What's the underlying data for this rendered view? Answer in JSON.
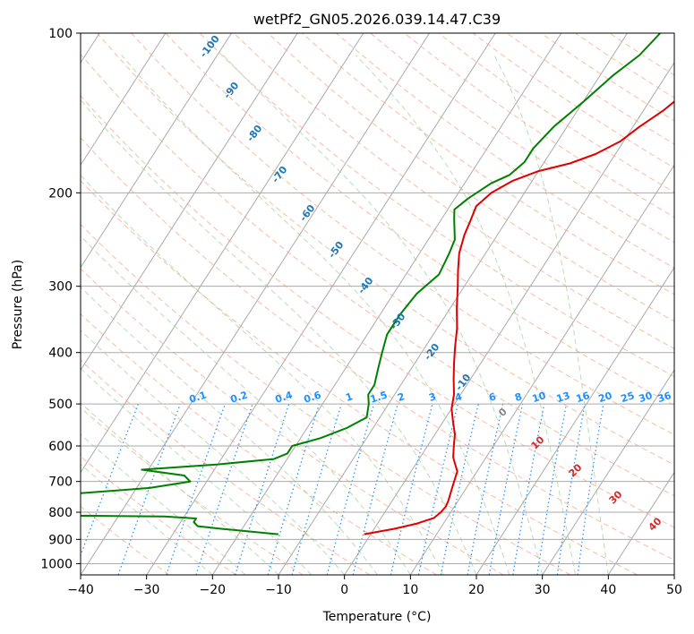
{
  "chart_data": {
    "type": "line",
    "title": "wetPf2_GN05.2026.039.14.47.C39",
    "xlabel": "Temperature (°C)",
    "ylabel": "Pressure (hPa)",
    "xlim": [
      -40,
      50
    ],
    "ylim": [
      1050,
      100
    ],
    "y_scale": "log",
    "grid": true,
    "x_ticks": [
      "−40",
      "−30",
      "−20",
      "−10",
      "0",
      "10",
      "20",
      "30",
      "40",
      "50"
    ],
    "y_ticks": [
      "100",
      "200",
      "300",
      "400",
      "500",
      "600",
      "700",
      "800",
      "900",
      "1000"
    ],
    "y_tick_values": [
      100,
      200,
      300,
      400,
      500,
      600,
      700,
      800,
      900,
      1000
    ],
    "series": [
      {
        "id": "temperature",
        "color": "#e00000",
        "points": [
          [
            -1,
            880
          ],
          [
            3,
            860
          ],
          [
            6,
            840
          ],
          [
            8,
            820
          ],
          [
            8.5,
            800
          ],
          [
            8.7,
            780
          ],
          [
            8.5,
            760
          ],
          [
            8,
            730
          ],
          [
            7.5,
            700
          ],
          [
            7,
            670
          ],
          [
            6,
            650
          ],
          [
            5,
            630
          ],
          [
            4,
            600
          ],
          [
            3,
            570
          ],
          [
            1.5,
            540
          ],
          [
            0,
            510
          ],
          [
            -1,
            480
          ],
          [
            -2.5,
            450
          ],
          [
            -4,
            420
          ],
          [
            -5.5,
            390
          ],
          [
            -7,
            360
          ],
          [
            -9,
            330
          ],
          [
            -11,
            300
          ],
          [
            -12.5,
            280
          ],
          [
            -14,
            260
          ],
          [
            -15,
            240
          ],
          [
            -15.5,
            225
          ],
          [
            -16,
            212
          ],
          [
            -15,
            200
          ],
          [
            -13,
            190
          ],
          [
            -10,
            182
          ],
          [
            -6,
            176
          ],
          [
            -3,
            169
          ],
          [
            -0.5,
            160
          ],
          [
            1,
            150
          ],
          [
            3,
            140
          ],
          [
            4.5,
            130
          ],
          [
            6,
            120
          ],
          [
            7.5,
            115
          ],
          [
            9,
            108
          ],
          [
            10.5,
            100
          ]
        ]
      },
      {
        "id": "dewpoint",
        "color": "#008000",
        "points": [
          [
            -14,
            880
          ],
          [
            -23,
            860
          ],
          [
            -27,
            850
          ],
          [
            -28,
            835
          ],
          [
            -28,
            822
          ],
          [
            -33,
            815
          ],
          [
            -45,
            812
          ],
          [
            -55,
            815
          ],
          [
            -62,
            822
          ],
          [
            -50,
            740
          ],
          [
            -38,
            720
          ],
          [
            -32.5,
            700
          ],
          [
            -34,
            682
          ],
          [
            -41,
            665
          ],
          [
            -30,
            650
          ],
          [
            -22,
            635
          ],
          [
            -20.5,
            620
          ],
          [
            -20.5,
            600
          ],
          [
            -17,
            580
          ],
          [
            -14,
            555
          ],
          [
            -12,
            530
          ],
          [
            -13,
            500
          ],
          [
            -14,
            480
          ],
          [
            -14,
            460
          ],
          [
            -15,
            430
          ],
          [
            -16,
            400
          ],
          [
            -17,
            370
          ],
          [
            -17,
            340
          ],
          [
            -16.5,
            310
          ],
          [
            -15,
            285
          ],
          [
            -15.5,
            260
          ],
          [
            -16,
            245
          ],
          [
            -18,
            225
          ],
          [
            -19,
            215
          ],
          [
            -18,
            205
          ],
          [
            -16,
            192
          ],
          [
            -14,
            185
          ],
          [
            -13,
            175
          ],
          [
            -13,
            165
          ],
          [
            -12,
            150
          ],
          [
            -10,
            135
          ],
          [
            -8,
            120
          ],
          [
            -6,
            110
          ],
          [
            -5,
            100
          ]
        ]
      }
    ],
    "dry_adiabat_labels": [
      "-100",
      "-90",
      "-80",
      "-70",
      "-60",
      "-50",
      "-40",
      "-30",
      "-20",
      "-10"
    ],
    "moist_adiabat_labels": [
      "0",
      "10",
      "20",
      "30",
      "40"
    ],
    "mixing_ratio_labels": [
      "0.1",
      "0.2",
      "0.4",
      "0.6",
      "1",
      "1.5",
      "2",
      "3",
      "4",
      "6",
      "8",
      "10",
      "13",
      "16",
      "20",
      "25",
      "30",
      "36"
    ]
  }
}
